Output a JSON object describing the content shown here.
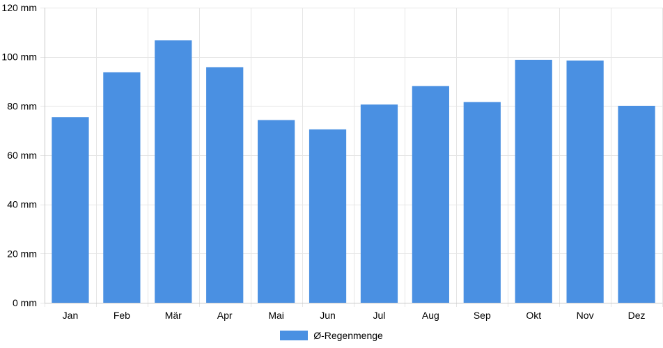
{
  "chart_data": {
    "type": "bar",
    "categories": [
      "Jan",
      "Feb",
      "Mär",
      "Apr",
      "Mai",
      "Jun",
      "Jul",
      "Aug",
      "Sep",
      "Okt",
      "Nov",
      "Dez"
    ],
    "series": [
      {
        "name": "Ø-Regenmenge",
        "color": "#4a90e2",
        "values": [
          75.5,
          93.7,
          106.7,
          95.8,
          74.3,
          70.5,
          80.6,
          88.1,
          81.6,
          98.8,
          98.5,
          80.1
        ]
      }
    ],
    "y_unit": "mm",
    "yticks": [
      0,
      20,
      40,
      60,
      80,
      100,
      120
    ],
    "ylim": [
      0,
      120
    ],
    "grid": true,
    "legend_position": "bottom-center",
    "gridline_color": "#e5e5e5",
    "axis_color": "#c8c8c8"
  }
}
